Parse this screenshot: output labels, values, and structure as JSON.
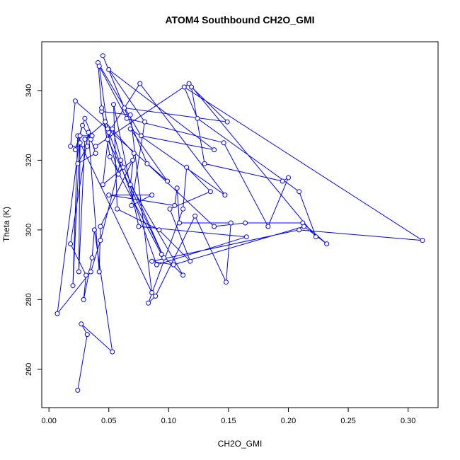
{
  "chart_data": {
    "type": "line",
    "title": "ATOM4 Southbound CH2O_GMI",
    "xlabel": "CH2O_GMI",
    "ylabel": "Theta (K)",
    "xlim": [
      -0.006,
      0.325
    ],
    "ylim": [
      249,
      354
    ],
    "xticks": [
      0.0,
      0.05,
      0.1,
      0.15,
      0.2,
      0.25,
      0.3
    ],
    "xtick_labels": [
      "0.00",
      "0.05",
      "0.10",
      "0.15",
      "0.20",
      "0.25",
      "0.30"
    ],
    "yticks": [
      260,
      280,
      300,
      320,
      340
    ],
    "ytick_labels": [
      "260",
      "280",
      "300",
      "320",
      "340"
    ],
    "grid": false,
    "line_color": "#0000ff",
    "marker": "open-circle",
    "series": [
      {
        "x": [
          0.024,
          0.032,
          0.027,
          0.053,
          0.038,
          0.036,
          0.029,
          0.031,
          0.018,
          0.033,
          0.042,
          0.043,
          0.07,
          0.045,
          0.05,
          0.076,
          0.147,
          0.068,
          0.099,
          0.022,
          0.018,
          0.032,
          0.024,
          0.039,
          0.035,
          0.028,
          0.022,
          0.03,
          0.036,
          0.024,
          0.02,
          0.026,
          0.007,
          0.035,
          0.043,
          0.06,
          0.096,
          0.049,
          0.053,
          0.062,
          0.058,
          0.044,
          0.068,
          0.086,
          0.026,
          0.025,
          0.03,
          0.047,
          0.071,
          0.068,
          0.112,
          0.094,
          0.051,
          0.044,
          0.041,
          0.077,
          0.138,
          0.05,
          0.08,
          0.069,
          0.086,
          0.05,
          0.105,
          0.107,
          0.109,
          0.152,
          0.148,
          0.122,
          0.089,
          0.083,
          0.112,
          0.115,
          0.135,
          0.101,
          0.118,
          0.092,
          0.057,
          0.054,
          0.075,
          0.165,
          0.09,
          0.049,
          0.042,
          0.065,
          0.146,
          0.183,
          0.2,
          0.195,
          0.13,
          0.119,
          0.149,
          0.063,
          0.045,
          0.082,
          0.138,
          0.164,
          0.212,
          0.232,
          0.213,
          0.104,
          0.086,
          0.209,
          0.312,
          0.113,
          0.124,
          0.209,
          0.223,
          0.117,
          0.039
        ],
        "y": [
          254,
          270,
          273,
          265,
          300,
          292,
          280,
          287,
          296,
          328,
          288,
          301,
          320,
          313,
          328,
          342,
          310,
          329,
          314,
          337,
          324,
          324,
          319,
          322,
          326,
          330,
          323,
          332,
          327,
          327,
          284,
          327,
          276,
          288,
          297,
          320,
          292,
          326,
          329,
          318,
          316,
          334,
          333,
          282,
          325,
          288,
          326,
          331,
          322,
          313,
          287,
          293,
          321,
          335,
          348,
          327,
          323,
          346,
          331,
          307,
          310,
          310,
          307,
          312,
          302,
          302,
          285,
          304,
          281,
          279,
          306,
          318,
          311,
          306,
          291,
          300,
          306,
          336,
          301,
          298,
          290,
          329,
          347,
          332,
          325,
          301,
          315,
          314,
          319,
          341,
          331,
          335,
          350,
          319,
          301,
          302,
          302,
          296,
          301,
          290,
          291,
          300,
          297,
          341,
          332,
          311,
          298,
          342,
          324
        ]
      }
    ]
  }
}
